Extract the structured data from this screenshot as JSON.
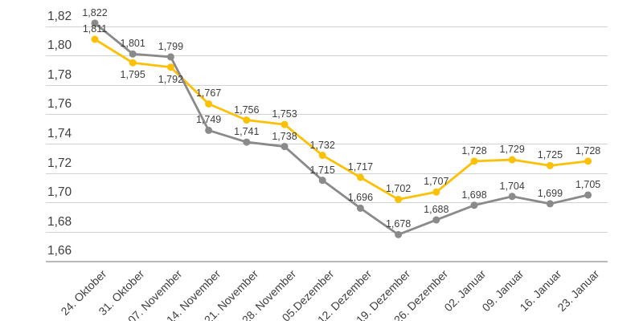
{
  "chart_data": {
    "type": "line",
    "title": "",
    "xlabel": "",
    "ylabel": "",
    "grid": true,
    "legend_position": "none",
    "y_min": 1.66,
    "y_max": 1.82,
    "y_tick_step": 0.02,
    "y_ticks": [
      "1,82",
      "1,80",
      "1,78",
      "1,76",
      "1,74",
      "1,72",
      "1,70",
      "1,68",
      "1,66"
    ],
    "x_categories": [
      "24. Oktober",
      "31. Oktober",
      "07. November",
      "14. November",
      "21. November",
      "28. November",
      "05.Dezember",
      "12. Dezember",
      "19. Dezember",
      "26. Dezember",
      "02. Januar",
      "09. Januar",
      "16. Januar",
      "23. Januar"
    ],
    "series": [
      {
        "key": "yellow-series",
        "color": "#FCC006",
        "marker": "circle",
        "values": [
          1.811,
          1.795,
          1.792,
          1.767,
          1.756,
          1.753,
          1.732,
          1.717,
          1.702,
          1.707,
          1.728,
          1.729,
          1.725,
          1.728
        ],
        "labels": [
          "1,811",
          "1,795",
          "1,792",
          "1,767",
          "1,756",
          "1,753",
          "1,732",
          "1,717",
          "1,702",
          "1,707",
          "1,728",
          "1,729",
          "1,725",
          "1,728"
        ],
        "label_below_indices": [
          1,
          2
        ]
      },
      {
        "key": "gray-series",
        "color": "#8A8A8A",
        "marker": "circle",
        "values": [
          1.822,
          1.801,
          1.799,
          1.749,
          1.741,
          1.738,
          1.715,
          1.696,
          1.678,
          1.688,
          1.698,
          1.704,
          1.699,
          1.705
        ],
        "labels": [
          "1,822",
          "1,801",
          "1,799",
          "1,749",
          "1,741",
          "1,738",
          "1,715",
          "1,696",
          "1,678",
          "1,688",
          "1,698",
          "1,704",
          "1,699",
          "1,705"
        ],
        "label_below_indices": []
      }
    ],
    "colors": {
      "background": "#FFFFFF",
      "gridline": "#D2D2D2",
      "axis_line": "#B9B9B9",
      "tick_text": "#3F3F3F",
      "data_label_text": "#3D3D3D"
    }
  }
}
